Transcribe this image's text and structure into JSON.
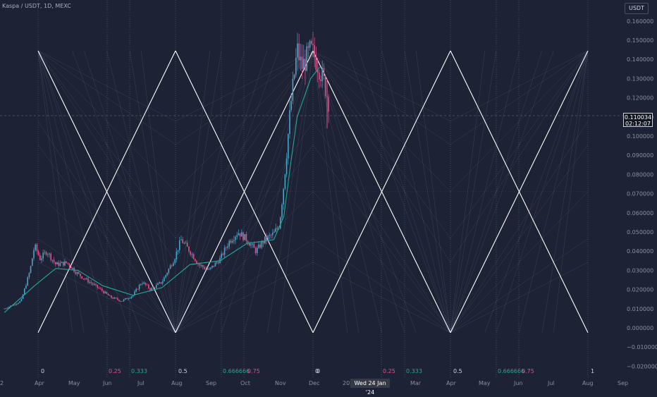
{
  "header": {
    "symbol": "Kaspa / USDT, 1D, MEXC",
    "currency_button": "USDT"
  },
  "crosshair": {
    "price": "0.110034",
    "countdown": "02:12:07",
    "date": "Wed 24 Jan '24"
  },
  "colors": {
    "background": "#1e2235",
    "up": "#4aa3c8",
    "down": "#d9558a",
    "ma": "#26a69a",
    "grid_line": "#4e7d8d",
    "fan": "#ffffff",
    "fib_teal": "#26a69a",
    "fib_pink": "#d9558a"
  },
  "chart_data": {
    "type": "candlestick",
    "y_axis": {
      "ticks": [
        "0.160000",
        "0.150000",
        "0.140000",
        "0.130000",
        "0.120000",
        "0.110000",
        "0.100000",
        "0.090000",
        "0.080000",
        "0.070000",
        "0.060000",
        "0.050000",
        "0.040000",
        "0.030000",
        "0.020000",
        "0.010000",
        "0.000000",
        "−0.010000",
        "−0.020000"
      ],
      "ylim": [
        -0.022,
        0.164
      ]
    },
    "x_axis": {
      "ticks": [
        "2",
        "Apr",
        "May",
        "Jun",
        "Jul",
        "Aug",
        "Sep",
        "Oct",
        "Nov",
        "Dec",
        "202",
        "Mar",
        "Apr",
        "May",
        "Jun",
        "Jul",
        "Aug",
        "Sep"
      ]
    },
    "gann_fan": {
      "high_price": 0.1445,
      "low_price": -0.0025,
      "center_price": 0.071,
      "labels": [
        {
          "text": "0",
          "color": "#d1d4dc"
        },
        {
          "text": "0.25",
          "color": "#d9558a"
        },
        {
          "text": "0.333",
          "color": "#26a69a"
        },
        {
          "text": "0.5",
          "color": "#d1d4dc"
        },
        {
          "text": "0.666666",
          "color": "#26a69a"
        },
        {
          "text": "0.75",
          "color": "#d9558a"
        },
        {
          "text": "0",
          "color": "#d1d4dc"
        },
        {
          "text": "0",
          "color": "#d1d4dc"
        },
        {
          "text": "0.25",
          "color": "#d9558a"
        },
        {
          "text": "0.333",
          "color": "#26a69a"
        },
        {
          "text": "0.5",
          "color": "#d1d4dc"
        },
        {
          "text": "0.666666",
          "color": "#26a69a"
        },
        {
          "text": "0.75",
          "color": "#d9558a"
        },
        {
          "text": "1",
          "color": "#d1d4dc"
        }
      ]
    },
    "price_path": [
      [
        "Mar 05",
        0.01
      ],
      [
        "Mar 20",
        0.014
      ],
      [
        "Mar 28",
        0.03
      ],
      [
        "Apr 01",
        0.043
      ],
      [
        "Apr 06",
        0.036
      ],
      [
        "Apr 12",
        0.04
      ],
      [
        "Apr 20",
        0.033
      ],
      [
        "Apr 30",
        0.034
      ],
      [
        "May 10",
        0.028
      ],
      [
        "May 20",
        0.024
      ],
      [
        "May 30",
        0.02
      ],
      [
        "Jun 08",
        0.016
      ],
      [
        "Jun 18",
        0.014
      ],
      [
        "Jun 28",
        0.017
      ],
      [
        "Jul 06",
        0.024
      ],
      [
        "Jul 14",
        0.02
      ],
      [
        "Jul 24",
        0.024
      ],
      [
        "Aug 04",
        0.036
      ],
      [
        "Aug 10",
        0.046
      ],
      [
        "Aug 18",
        0.04
      ],
      [
        "Aug 26",
        0.033
      ],
      [
        "Sep 04",
        0.03
      ],
      [
        "Sep 14",
        0.036
      ],
      [
        "Sep 22",
        0.045
      ],
      [
        "Sep 30",
        0.05
      ],
      [
        "Oct 08",
        0.046
      ],
      [
        "Oct 16",
        0.04
      ],
      [
        "Oct 24",
        0.046
      ],
      [
        "Nov 01",
        0.049
      ],
      [
        "Nov 06",
        0.054
      ],
      [
        "Nov 10",
        0.075
      ],
      [
        "Nov 13",
        0.095
      ],
      [
        "Nov 16",
        0.115
      ],
      [
        "Nov 19",
        0.13
      ],
      [
        "Nov 22",
        0.145
      ],
      [
        "Nov 26",
        0.136
      ],
      [
        "Nov 30",
        0.14
      ],
      [
        "Dec 04",
        0.145
      ],
      [
        "Dec 08",
        0.141
      ],
      [
        "Dec 12",
        0.135
      ],
      [
        "Dec 16",
        0.128
      ],
      [
        "Dec 20",
        0.118
      ]
    ],
    "moving_average": [
      [
        "Mar 05",
        0.008
      ],
      [
        "Apr 01",
        0.022
      ],
      [
        "Apr 20",
        0.031
      ],
      [
        "May 10",
        0.03
      ],
      [
        "Jun 01",
        0.022
      ],
      [
        "Jun 28",
        0.017
      ],
      [
        "Jul 24",
        0.021
      ],
      [
        "Aug 18",
        0.033
      ],
      [
        "Sep 14",
        0.035
      ],
      [
        "Oct 08",
        0.044
      ],
      [
        "Nov 01",
        0.046
      ],
      [
        "Nov 10",
        0.058
      ],
      [
        "Nov 16",
        0.085
      ],
      [
        "Nov 22",
        0.11
      ],
      [
        "Dec 04",
        0.13
      ],
      [
        "Dec 12",
        0.136
      ]
    ]
  }
}
